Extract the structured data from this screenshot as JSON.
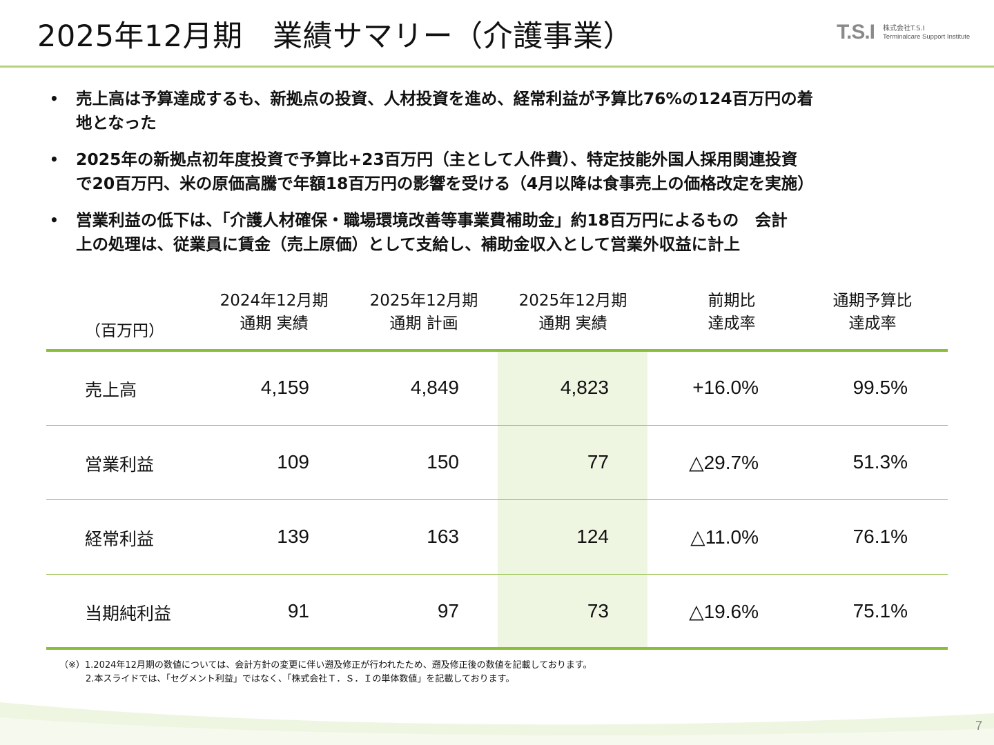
{
  "title": "2025年12月期　業績サマリー（介護事業）",
  "logo": {
    "mark": "T.S.I",
    "company": "株式会社T.S.I",
    "sub": "Terminalcare Support Institute"
  },
  "bullets": [
    [
      "売上高は予算達成するも、新拠点の投資、人材投資を進め、経常利益が予算比76%の124百万円の着",
      "地となった"
    ],
    [
      "2025年の新拠点初年度投資で予算比+23百万円（主として人件費）、特定技能外国人採用関連投資",
      "で20百万円、米の原価高騰で年額18百万円の影響を受ける（4月以降は食事売上の価格改定を実施）"
    ],
    [
      "営業利益の低下は、「介護人材確保・職場環境改善等事業費補助金」約18百万円によるもの　会計",
      "上の処理は、従業員に賃金（売上原価）として支給し、補助金収入として営業外収益に計上"
    ]
  ],
  "bullet_symbol": "•",
  "table": {
    "unit": "（百万円）",
    "headers": [
      [
        "2024年12月期",
        "通期 実績"
      ],
      [
        "2025年12月期",
        "通期 計画"
      ],
      [
        "2025年12月期",
        "通期 実績"
      ],
      [
        "前期比",
        "達成率"
      ],
      [
        "通期予算比",
        "達成率"
      ]
    ],
    "rows": [
      {
        "label": "売上高",
        "values": [
          "4,159",
          "4,849",
          "4,823",
          "+16.0%",
          "99.5%"
        ]
      },
      {
        "label": "営業利益",
        "values": [
          "109",
          "150",
          "77",
          "△29.7%",
          "51.3%"
        ]
      },
      {
        "label": "経常利益",
        "values": [
          "139",
          "163",
          "124",
          "△11.0%",
          "76.1%"
        ]
      },
      {
        "label": "当期純利益",
        "values": [
          "91",
          "97",
          "73",
          "△19.6%",
          "75.1%"
        ]
      }
    ],
    "highlight_color": "#eef6e2",
    "rule_color": "#8bbd3a"
  },
  "notes": [
    "（※）1.2024年12月期の数値については、会計方針の変更に伴い遡及修正が行われたため、遡及修正後の数値を記載しております。",
    "2.本スライドでは、「セグメント利益」ではなく、「株式会社Ｔ．Ｓ．Ｉの単体数値」を記載しております。"
  ],
  "page_number": "7"
}
